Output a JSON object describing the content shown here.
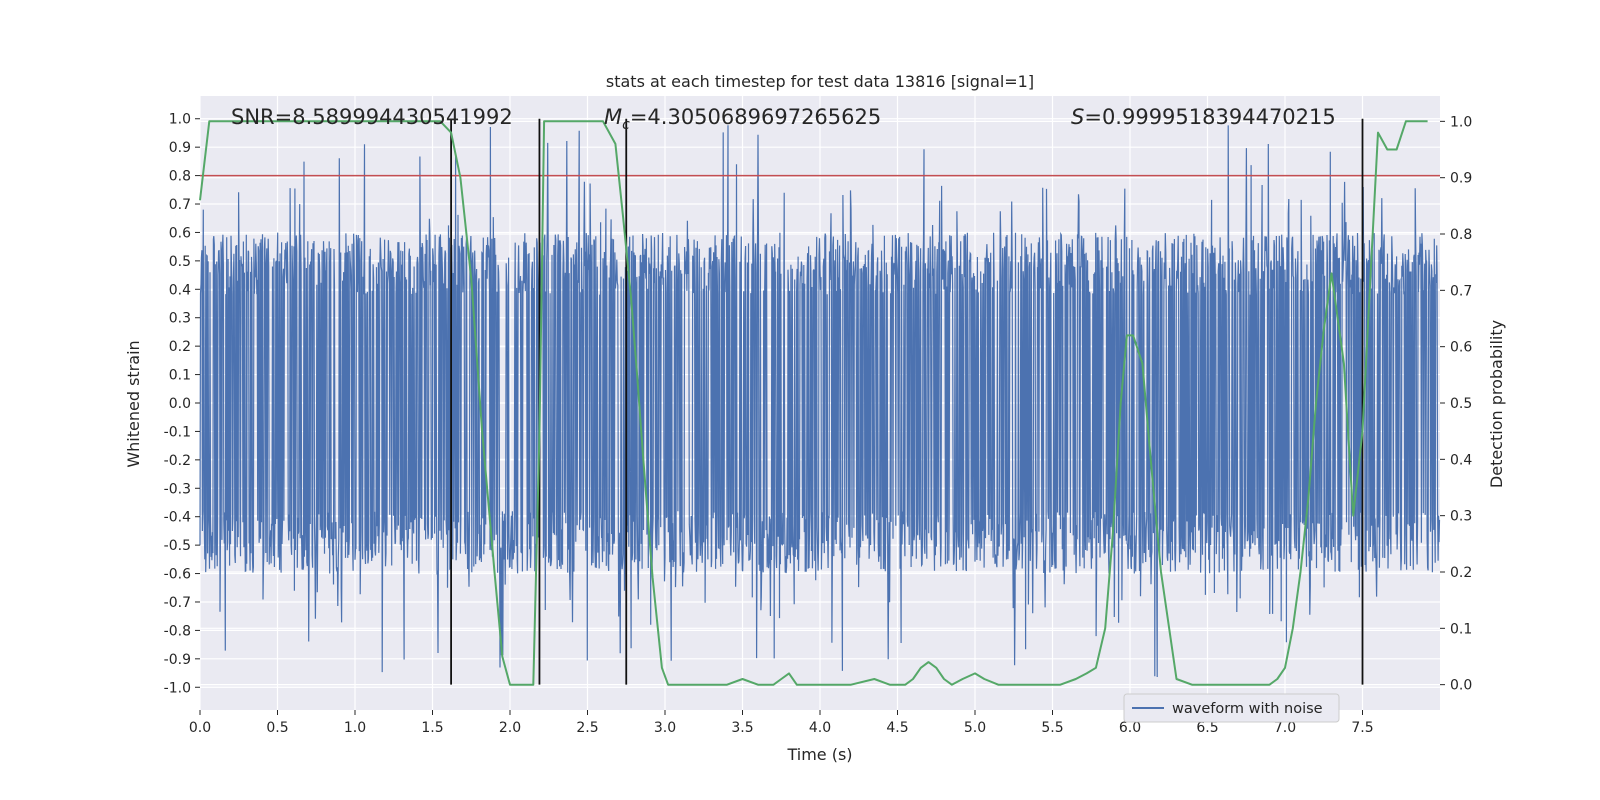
{
  "chart_data": {
    "type": "line",
    "title": "stats at each timestep for test data 13816 [signal=1]",
    "xlabel": "Time (s)",
    "ylabel": "Whitened strain",
    "y2label": "Detection probability",
    "xlim": [
      0.0,
      8.0
    ],
    "ylim": [
      -1.08,
      1.08
    ],
    "y2lim": [
      -0.045,
      1.045
    ],
    "x_ticks": [
      "0.0",
      "0.5",
      "1.0",
      "1.5",
      "2.0",
      "2.5",
      "3.0",
      "3.5",
      "4.0",
      "4.5",
      "5.0",
      "5.5",
      "6.0",
      "6.5",
      "7.0",
      "7.5"
    ],
    "y_ticks": [
      "1.0",
      "0.9",
      "0.8",
      "0.7",
      "0.6",
      "0.5",
      "0.4",
      "0.3",
      "0.2",
      "0.1",
      "0.0",
      "-0.1",
      "-0.2",
      "-0.3",
      "-0.4",
      "-0.5",
      "-0.6",
      "-0.7",
      "-0.8",
      "-0.9",
      "-1.0"
    ],
    "y2_ticks": [
      "1.0",
      "0.9",
      "0.8",
      "0.7",
      "0.6",
      "0.5",
      "0.4",
      "0.3",
      "0.2",
      "0.1",
      "0.0"
    ],
    "grid": true,
    "legend": {
      "entries": [
        "waveform with noise"
      ],
      "placement": "lower-right"
    },
    "annotations": {
      "snr": "SNR=8.589994430541992",
      "mc_symbol": "M",
      "mc_sub": "c",
      "mc_value": "=4.3050689697265625",
      "s_symbol": "S",
      "s_value": "=0.9999518394470215"
    },
    "threshold": {
      "value": 0.8,
      "axis": "left",
      "color": "#c44e52"
    },
    "vertical_lines": [
      1.62,
      2.19,
      2.75,
      7.5
    ],
    "series": [
      {
        "name": "waveform with noise",
        "axis": "left",
        "color": "#4c72b0",
        "envelope": "dense whitened-strain noise trace spanning about -0.6 to 0.6 with spikes reaching about ±1.0"
      },
      {
        "name": "detection probability",
        "axis": "right",
        "color": "#55a868",
        "x": [
          0.0,
          0.06,
          0.12,
          0.2,
          0.3,
          0.5,
          0.8,
          1.0,
          1.2,
          1.4,
          1.55,
          1.62,
          1.68,
          1.75,
          1.82,
          1.9,
          1.95,
          2.0,
          2.05,
          2.1,
          2.15,
          2.19,
          2.22,
          2.26,
          2.3,
          2.4,
          2.5,
          2.6,
          2.68,
          2.73,
          2.78,
          2.82,
          2.86,
          2.92,
          2.98,
          3.02,
          3.06,
          3.12,
          3.2,
          3.3,
          3.4,
          3.5,
          3.6,
          3.7,
          3.75,
          3.8,
          3.85,
          3.95,
          4.05,
          4.2,
          4.35,
          4.45,
          4.55,
          4.6,
          4.65,
          4.7,
          4.75,
          4.8,
          4.85,
          4.92,
          5.0,
          5.06,
          5.15,
          5.3,
          5.45,
          5.55,
          5.65,
          5.72,
          5.78,
          5.84,
          5.89,
          5.94,
          5.98,
          6.02,
          6.08,
          6.14,
          6.2,
          6.3,
          6.4,
          6.5,
          6.6,
          6.7,
          6.8,
          6.85,
          6.9,
          6.95,
          7.0,
          7.05,
          7.1,
          7.15,
          7.2,
          7.25,
          7.3,
          7.38,
          7.44,
          7.5,
          7.56,
          7.6,
          7.66,
          7.72,
          7.78,
          7.85,
          7.92
        ],
        "values": [
          0.86,
          1.0,
          1.0,
          1.0,
          1.0,
          1.0,
          1.0,
          1.0,
          1.0,
          1.0,
          1.0,
          0.98,
          0.9,
          0.72,
          0.45,
          0.2,
          0.05,
          0.0,
          0.0,
          0.0,
          0.0,
          0.45,
          1.0,
          1.0,
          1.0,
          1.0,
          1.0,
          1.0,
          0.96,
          0.83,
          0.69,
          0.55,
          0.4,
          0.19,
          0.03,
          0.0,
          0.0,
          0.0,
          0.0,
          0.0,
          0.0,
          0.01,
          0.0,
          0.0,
          0.01,
          0.02,
          0.0,
          0.0,
          0.0,
          0.0,
          0.01,
          0.0,
          0.0,
          0.01,
          0.03,
          0.04,
          0.03,
          0.01,
          0.0,
          0.01,
          0.02,
          0.01,
          0.0,
          0.0,
          0.0,
          0.0,
          0.01,
          0.02,
          0.03,
          0.1,
          0.27,
          0.5,
          0.62,
          0.62,
          0.57,
          0.38,
          0.2,
          0.01,
          0.0,
          0.0,
          0.0,
          0.0,
          0.0,
          0.0,
          0.0,
          0.01,
          0.03,
          0.1,
          0.2,
          0.33,
          0.5,
          0.63,
          0.73,
          0.57,
          0.3,
          0.45,
          0.77,
          0.98,
          0.95,
          0.95,
          1.0,
          1.0,
          1.0
        ]
      }
    ]
  }
}
